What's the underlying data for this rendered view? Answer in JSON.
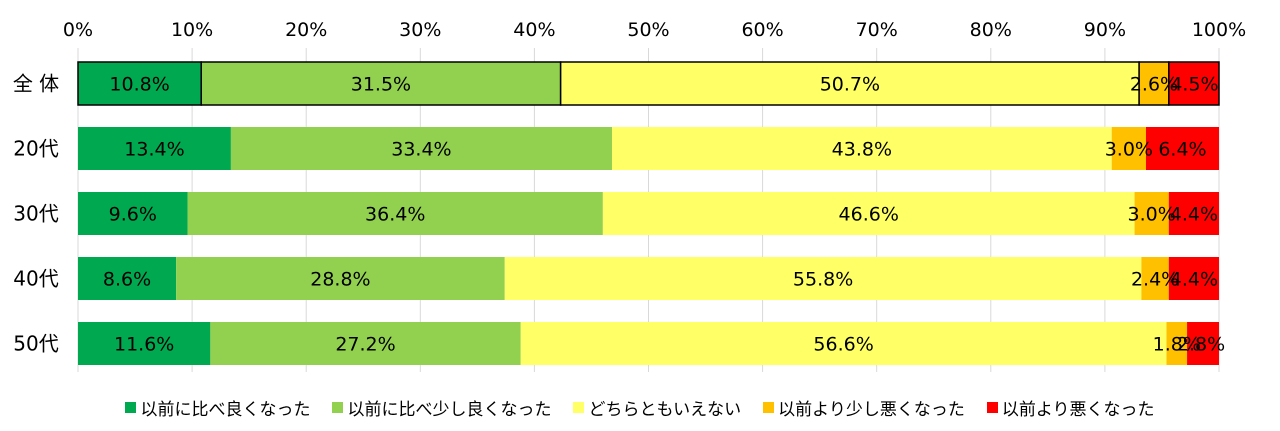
{
  "chart_data": {
    "type": "bar",
    "orientation": "horizontal",
    "stacked": true,
    "categories": [
      "全 体",
      "20代",
      "30代",
      "40代",
      "50代"
    ],
    "series": [
      {
        "name": "以前に比べ良くなった",
        "color": "#00a84f",
        "values": [
          10.8,
          13.4,
          9.6,
          8.6,
          11.6
        ],
        "labels": [
          "10.8%",
          "13.4%",
          "9.6%",
          "8.6%",
          "11.6%"
        ]
      },
      {
        "name": "以前に比べ少し良くなった",
        "color": "#92d050",
        "values": [
          31.5,
          33.4,
          36.4,
          28.8,
          27.2
        ],
        "labels": [
          "31.5%",
          "33.4%",
          "36.4%",
          "28.8%",
          "27.2%"
        ]
      },
      {
        "name": "どちらともいえない",
        "color": "#ffff66",
        "values": [
          50.7,
          43.8,
          46.6,
          55.8,
          56.6
        ],
        "labels": [
          "50.7%",
          "43.8%",
          "46.6%",
          "55.8%",
          "56.6%"
        ]
      },
      {
        "name": "以前より少し悪くなった",
        "color": "#ffc000",
        "values": [
          2.6,
          3.0,
          3.0,
          2.4,
          1.8
        ],
        "labels": [
          "2.6%",
          "3.0%",
          "3.0%",
          "2.4%",
          "1.8%"
        ]
      },
      {
        "name": "以前より悪くなった",
        "color": "#ff0000",
        "values": [
          4.5,
          6.4,
          4.4,
          4.4,
          2.8
        ],
        "labels": [
          "4.5%",
          "6.4%",
          "4.4%",
          "4.4%",
          "2.8%"
        ]
      }
    ],
    "xlim": [
      0,
      100
    ],
    "x_ticks": [
      "0%",
      "10%",
      "20%",
      "30%",
      "40%",
      "50%",
      "60%",
      "70%",
      "80%",
      "90%",
      "100%"
    ],
    "x_axis_position": "top",
    "grid": true,
    "legend_position": "bottom",
    "outlined_category": "全 体"
  }
}
